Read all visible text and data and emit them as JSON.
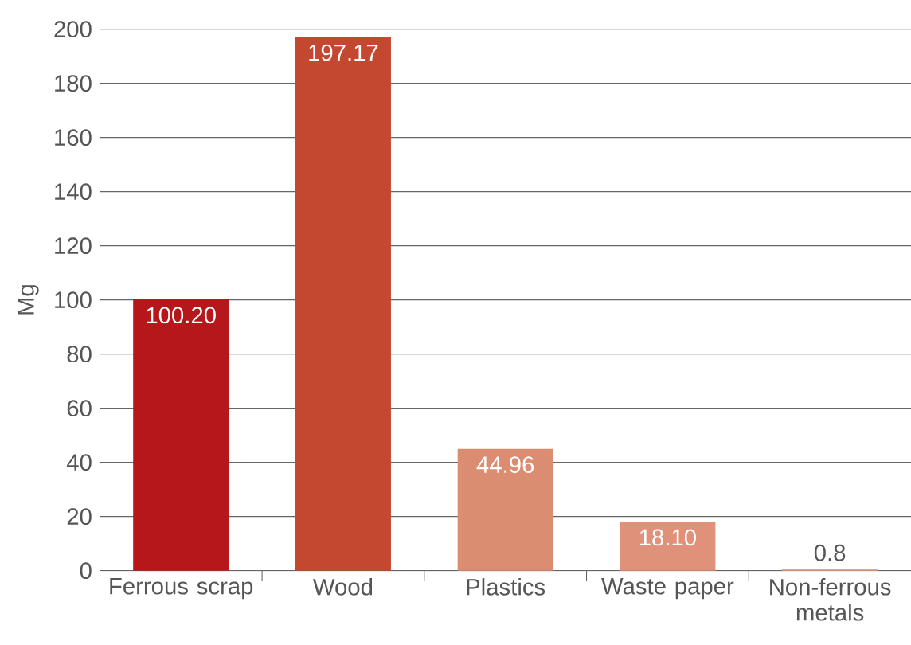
{
  "chart_data": {
    "type": "bar",
    "ylabel": "Mg",
    "categories": [
      "Ferrous scrap",
      "Wood",
      "Plastics",
      "Waste paper",
      "Non-ferrous metals"
    ],
    "values": [
      100.2,
      197.17,
      44.96,
      18.1,
      0.8
    ],
    "value_labels": [
      "100.20",
      "197.17",
      "44.96",
      "18.10",
      "0.8"
    ],
    "colors": [
      "#b5171a",
      "#c4472f",
      "#db8d72",
      "#e0917a",
      "#e6a08c"
    ],
    "ylim": [
      0,
      200
    ],
    "yticks": [
      0,
      20,
      40,
      60,
      80,
      100,
      120,
      140,
      160,
      180,
      200
    ],
    "grid": "y"
  }
}
